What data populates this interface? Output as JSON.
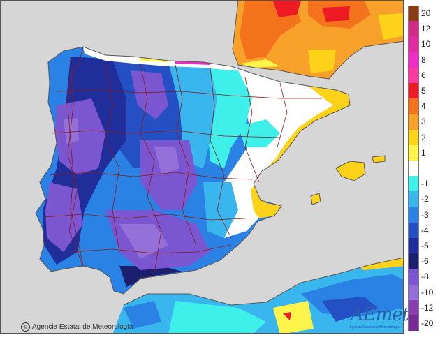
{
  "credit": {
    "symbol": "©",
    "text": "Agencia Estatal de Meteorología"
  },
  "logo": {
    "wordmark": "AEmet",
    "subtitle": "Agencia Estatal de Meteorología"
  },
  "legend": [
    {
      "label": "20",
      "color": "#8a3d12"
    },
    {
      "label": "12",
      "color": "#d12a86"
    },
    {
      "label": "10",
      "color": "#e02aa0"
    },
    {
      "label": "8",
      "color": "#f02cc8"
    },
    {
      "label": "6",
      "color": "#ff3aa0"
    },
    {
      "label": "5",
      "color": "#ee1b24"
    },
    {
      "label": "4",
      "color": "#f4721c"
    },
    {
      "label": "3",
      "color": "#f8a12a"
    },
    {
      "label": "2",
      "color": "#ffd21a"
    },
    {
      "label": "1",
      "color": "#fff44a"
    },
    {
      "label": "",
      "color": "#ffffff"
    },
    {
      "label": "-1",
      "color": "#3ff0ea"
    },
    {
      "label": "-2",
      "color": "#3ab6ee"
    },
    {
      "label": "-3",
      "color": "#2a82e4"
    },
    {
      "label": "-4",
      "color": "#2550c4"
    },
    {
      "label": "-5",
      "color": "#1f2e9a"
    },
    {
      "label": "-6",
      "color": "#1c1f6e"
    },
    {
      "label": "-8",
      "color": "#7a56d0"
    },
    {
      "label": "-10",
      "color": "#9470d8"
    },
    {
      "label": "-12",
      "color": "#8a3fb0"
    },
    {
      "label": "-20",
      "color": "#7a2a98"
    }
  ],
  "colors": {
    "ocean": "#d6d6d6",
    "border_lines": "#8b1a1a",
    "coast": "#555555"
  }
}
